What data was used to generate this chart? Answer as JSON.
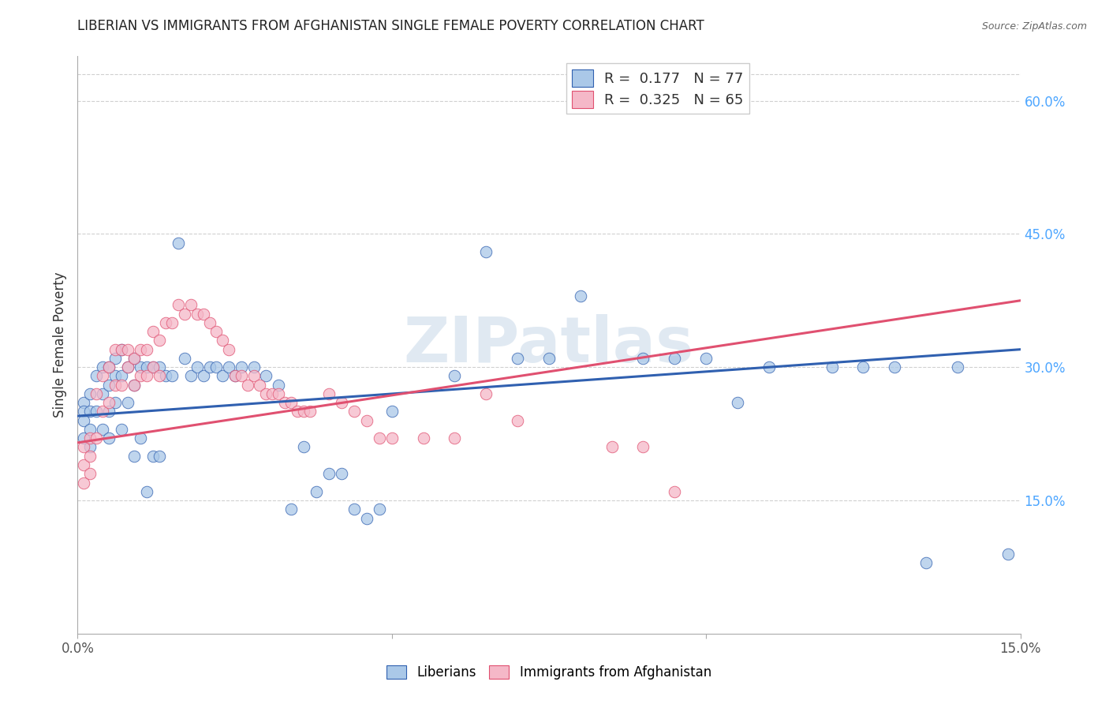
{
  "title": "LIBERIAN VS IMMIGRANTS FROM AFGHANISTAN SINGLE FEMALE POVERTY CORRELATION CHART",
  "source": "Source: ZipAtlas.com",
  "ylabel": "Single Female Poverty",
  "right_yticks": [
    "60.0%",
    "45.0%",
    "30.0%",
    "15.0%"
  ],
  "right_ytick_vals": [
    0.6,
    0.45,
    0.3,
    0.15
  ],
  "xlim": [
    0.0,
    0.15
  ],
  "ylim": [
    0.0,
    0.65
  ],
  "R_blue": 0.177,
  "N_blue": 77,
  "R_pink": 0.325,
  "N_pink": 65,
  "color_blue": "#aac8e8",
  "color_pink": "#f5b8c8",
  "line_color_blue": "#3060b0",
  "line_color_pink": "#e05070",
  "watermark": "ZIPatlas",
  "legend_label_blue": "Liberians",
  "legend_label_pink": "Immigrants from Afghanistan",
  "blue_x": [
    0.001,
    0.001,
    0.001,
    0.001,
    0.002,
    0.002,
    0.002,
    0.002,
    0.003,
    0.003,
    0.004,
    0.004,
    0.004,
    0.005,
    0.005,
    0.005,
    0.005,
    0.006,
    0.006,
    0.006,
    0.007,
    0.007,
    0.007,
    0.008,
    0.008,
    0.009,
    0.009,
    0.009,
    0.01,
    0.01,
    0.011,
    0.011,
    0.012,
    0.012,
    0.013,
    0.013,
    0.014,
    0.015,
    0.016,
    0.017,
    0.018,
    0.019,
    0.02,
    0.021,
    0.022,
    0.023,
    0.024,
    0.025,
    0.026,
    0.028,
    0.03,
    0.032,
    0.034,
    0.036,
    0.038,
    0.04,
    0.042,
    0.044,
    0.046,
    0.048,
    0.05,
    0.06,
    0.065,
    0.07,
    0.075,
    0.08,
    0.09,
    0.095,
    0.1,
    0.105,
    0.11,
    0.12,
    0.125,
    0.13,
    0.135,
    0.14,
    0.148
  ],
  "blue_y": [
    0.26,
    0.25,
    0.24,
    0.22,
    0.27,
    0.25,
    0.23,
    0.21,
    0.29,
    0.25,
    0.3,
    0.27,
    0.23,
    0.3,
    0.28,
    0.25,
    0.22,
    0.31,
    0.29,
    0.26,
    0.32,
    0.29,
    0.23,
    0.3,
    0.26,
    0.31,
    0.28,
    0.2,
    0.3,
    0.22,
    0.3,
    0.16,
    0.3,
    0.2,
    0.3,
    0.2,
    0.29,
    0.29,
    0.44,
    0.31,
    0.29,
    0.3,
    0.29,
    0.3,
    0.3,
    0.29,
    0.3,
    0.29,
    0.3,
    0.3,
    0.29,
    0.28,
    0.14,
    0.21,
    0.16,
    0.18,
    0.18,
    0.14,
    0.13,
    0.14,
    0.25,
    0.29,
    0.43,
    0.31,
    0.31,
    0.38,
    0.31,
    0.31,
    0.31,
    0.26,
    0.3,
    0.3,
    0.3,
    0.3,
    0.08,
    0.3,
    0.09
  ],
  "pink_x": [
    0.001,
    0.001,
    0.001,
    0.002,
    0.002,
    0.002,
    0.003,
    0.003,
    0.004,
    0.004,
    0.005,
    0.005,
    0.006,
    0.006,
    0.007,
    0.007,
    0.008,
    0.008,
    0.009,
    0.009,
    0.01,
    0.01,
    0.011,
    0.011,
    0.012,
    0.012,
    0.013,
    0.013,
    0.014,
    0.015,
    0.016,
    0.017,
    0.018,
    0.019,
    0.02,
    0.021,
    0.022,
    0.023,
    0.024,
    0.025,
    0.026,
    0.027,
    0.028,
    0.029,
    0.03,
    0.031,
    0.032,
    0.033,
    0.034,
    0.035,
    0.036,
    0.037,
    0.04,
    0.042,
    0.044,
    0.046,
    0.048,
    0.05,
    0.055,
    0.06,
    0.065,
    0.07,
    0.085,
    0.09,
    0.095
  ],
  "pink_y": [
    0.21,
    0.19,
    0.17,
    0.22,
    0.2,
    0.18,
    0.27,
    0.22,
    0.29,
    0.25,
    0.3,
    0.26,
    0.32,
    0.28,
    0.32,
    0.28,
    0.32,
    0.3,
    0.31,
    0.28,
    0.32,
    0.29,
    0.32,
    0.29,
    0.34,
    0.3,
    0.33,
    0.29,
    0.35,
    0.35,
    0.37,
    0.36,
    0.37,
    0.36,
    0.36,
    0.35,
    0.34,
    0.33,
    0.32,
    0.29,
    0.29,
    0.28,
    0.29,
    0.28,
    0.27,
    0.27,
    0.27,
    0.26,
    0.26,
    0.25,
    0.25,
    0.25,
    0.27,
    0.26,
    0.25,
    0.24,
    0.22,
    0.22,
    0.22,
    0.22,
    0.27,
    0.24,
    0.21,
    0.21,
    0.16
  ]
}
